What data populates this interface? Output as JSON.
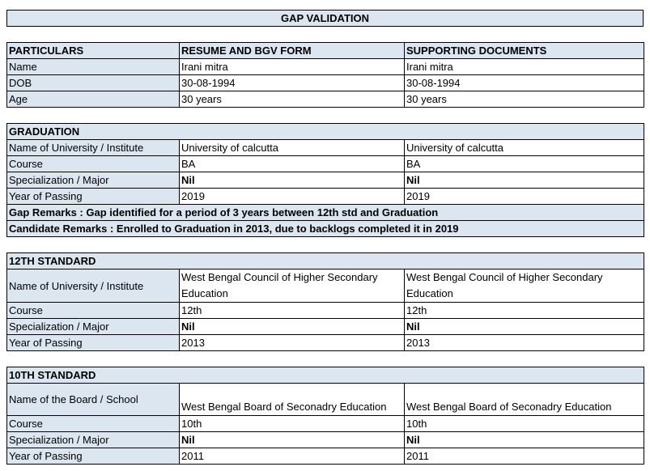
{
  "title": "GAP VALIDATION",
  "personal": {
    "headers": [
      "PARTICULARS",
      "RESUME AND BGV FORM",
      "SUPPORTING DOCUMENTS"
    ],
    "rows": [
      {
        "label": "Name",
        "resume": "Irani mitra",
        "docs": "Irani mitra"
      },
      {
        "label": "DOB",
        "resume": "30-08-1994",
        "docs": "30-08-1994"
      },
      {
        "label": "Age",
        "resume": "30 years",
        "docs": "30 years"
      }
    ]
  },
  "sections": [
    {
      "heading": "GRADUATION",
      "rows": [
        {
          "label": "Name of University / Institute",
          "resume": "University of calcutta",
          "docs": "University of calcutta"
        },
        {
          "label": "Course",
          "resume": "BA",
          "docs": "BA"
        },
        {
          "label": "Specialization / Major",
          "resume": "Nil",
          "docs": "Nil",
          "bold": true
        },
        {
          "label": "Year of Passing",
          "resume": "2019",
          "docs": "2019"
        }
      ],
      "remarks": [
        "Gap Remarks : Gap identified for a period of 3 years between 12th std and Graduation",
        "Candidate Remarks : Enrolled to Graduation in 2013, due to backlogs completed it in 2019"
      ]
    },
    {
      "heading": "12TH STANDARD",
      "rows": [
        {
          "label": "Name of University / Institute",
          "resume": "West Bengal Council of Higher Secondary Education",
          "docs": "West Bengal Council of Higher Secondary Education",
          "tall": true
        },
        {
          "label": "Course",
          "resume": "12th",
          "docs": "12th"
        },
        {
          "label": "Specialization / Major",
          "resume": "Nil",
          "docs": "Nil",
          "bold": true
        },
        {
          "label": "Year of Passing",
          "resume": "2013",
          "docs": "2013"
        }
      ],
      "remarks": []
    },
    {
      "heading": "10TH STANDARD",
      "rows": [
        {
          "label": "Name of the Board / School",
          "resume": "West Bengal Board of Seconadry Education",
          "docs": "West Bengal Board of Seconadry Education",
          "tall": true
        },
        {
          "label": "Course",
          "resume": "10th",
          "docs": "10th"
        },
        {
          "label": "Specialization / Major",
          "resume": "Nil",
          "docs": "Nil",
          "bold": true
        },
        {
          "label": "Year of Passing",
          "resume": "2011",
          "docs": "2011"
        }
      ],
      "remarks": []
    }
  ]
}
